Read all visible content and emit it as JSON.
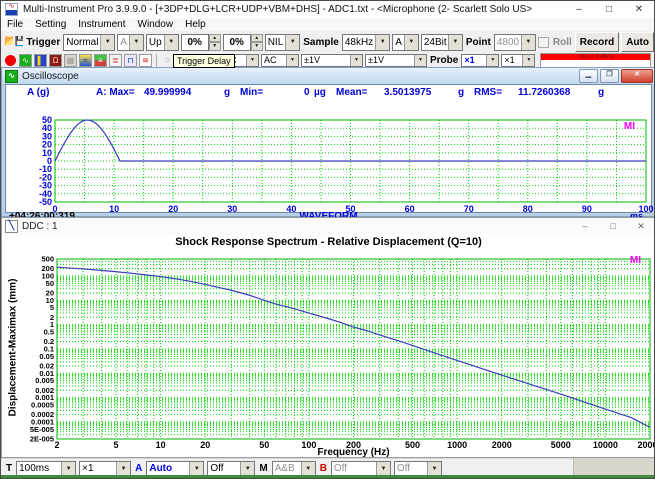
{
  "window": {
    "title": "Multi-Instrument Pro 3.9.9.0   -   [+3DP+DLG+LCR+UDP+VBM+DHS]   -   ADC1.txt   -   <Microphone (2- Scarlett Solo US>",
    "minimize": "–",
    "maximize": "□",
    "close": "✕"
  },
  "menu": {
    "items": [
      "File",
      "Setting",
      "Instrument",
      "Window",
      "Help"
    ]
  },
  "toolbar1": {
    "trigger_label": "Trigger",
    "trigger_mode": "Normal",
    "trigger_source": "A",
    "trigger_edge": "Up",
    "trigger_level": "0%",
    "trigger_delay": "0%",
    "hpf": "NIL",
    "sample_label": "Sample",
    "sample_rate": "48kHz",
    "sampling_channel": "A",
    "bit_depth": "24Bit",
    "point_label": "Point",
    "points": "4800",
    "roll_label": "Roll",
    "record_label": "Record",
    "auto_label": "Auto"
  },
  "toolbar2": {
    "coupling_a": "AC",
    "coupling_b": "AC",
    "range_a": "±1V",
    "range_b": "±1V",
    "probe_label": "Probe",
    "probe_a": "×1",
    "probe_b": "×1",
    "level_meter": "100%(0.0 dBFS)"
  },
  "tooltip": {
    "text": "Trigger Delay"
  },
  "oscilloscope": {
    "title": "Oscilloscope",
    "channel_label": "A (g)",
    "stats": {
      "max_label": "A: Max=",
      "max": "49.999994",
      "max_unit": "g",
      "min_label": "Min=",
      "min": "0",
      "min_unit": "µg",
      "mean_label": "Mean=",
      "mean": "3.5013975",
      "mean_unit": "g",
      "rms_label": "RMS=",
      "rms": "11.7260368",
      "rms_unit": "g"
    },
    "timestamp": "+04:26:00:319",
    "xlabel": "WAVEFORM",
    "x_unit": "ms",
    "logo": "MI"
  },
  "ddc": {
    "title": "DDC : 1",
    "chart_title": "Shock Response Spectrum  - Relative Displacement (Q=10)",
    "ylabel": "Displacement-Maximax (mm)",
    "xlabel": "Frequency (Hz)",
    "logo": "MI"
  },
  "bottom_toolbar": {
    "t_label": "T",
    "timebase": "100ms",
    "zoom": "×1",
    "a_label": "A",
    "a_mode": "Auto",
    "a_extra": "Off",
    "m_label": "M",
    "m_mode": "A&B",
    "b_label": "B",
    "b_mode": "Off",
    "b_extra": "Off"
  },
  "colors": {
    "grid_green": "#00d800",
    "plot_border_green": "#00b400",
    "curve_blue": "#3a3ac0",
    "label_blue": "#0000d8",
    "logo_magenta": "#ff00ff"
  },
  "chart_data": [
    {
      "type": "line",
      "name": "oscilloscope-waveform",
      "title": "WAVEFORM",
      "xlabel": "WAVEFORM",
      "ylabel": "A (g)",
      "x_unit": "ms",
      "y_unit": "g",
      "xlim": [
        0,
        100
      ],
      "ylim": [
        -50,
        50
      ],
      "x_ticks": [
        0,
        10,
        20,
        30,
        40,
        50,
        60,
        70,
        80,
        90,
        100
      ],
      "y_ticks": [
        50,
        40,
        30,
        20,
        10,
        0,
        -10,
        -20,
        -30,
        -40,
        -50
      ],
      "grid": "dotted-green",
      "pulse": {
        "shape": "half-sine",
        "amplitude_g": 50,
        "duration_ms": 11
      },
      "series": [
        {
          "name": "A",
          "points": [
            [
              0,
              0
            ],
            [
              0.5,
              7.1
            ],
            [
              1,
              14.1
            ],
            [
              1.5,
              20.8
            ],
            [
              2,
              27
            ],
            [
              2.5,
              32.7
            ],
            [
              3,
              37.8
            ],
            [
              3.5,
              42.1
            ],
            [
              4,
              45.5
            ],
            [
              4.5,
              48.1
            ],
            [
              5,
              49.5
            ],
            [
              5.5,
              50
            ],
            [
              6,
              49.5
            ],
            [
              6.5,
              47.8
            ],
            [
              7,
              45.5
            ],
            [
              7.5,
              41.9
            ],
            [
              8,
              37.8
            ],
            [
              8.5,
              32.7
            ],
            [
              9,
              27
            ],
            [
              9.5,
              20.8
            ],
            [
              10,
              14.1
            ],
            [
              10.5,
              7.1
            ],
            [
              11,
              0
            ],
            [
              100,
              0
            ]
          ]
        }
      ]
    },
    {
      "type": "line",
      "name": "shock-response-spectrum",
      "title": "Shock Response Spectrum  - Relative Displacement (Q=10)",
      "xlabel": "Frequency (Hz)",
      "ylabel": "Displacement-Maximax (mm)",
      "x_scale": "log",
      "y_scale": "log",
      "xlim": [
        2,
        20000
      ],
      "ylim": [
        2e-05,
        500
      ],
      "x_ticks": [
        "2",
        "5",
        "10",
        "20",
        "50",
        "100",
        "200",
        "500",
        "1000",
        "2000",
        "5000",
        "10000",
        "20000"
      ],
      "y_ticks": [
        "500",
        "200",
        "100",
        "50",
        "20",
        "10",
        "5",
        "2",
        "1",
        "0.5",
        "0.2",
        "0.1",
        "0.05",
        "0.02",
        "0.01",
        "0.005",
        "0.002",
        "0.001",
        "0.0005",
        "0.0002",
        "0.0001",
        "5E-005",
        "2E-005"
      ],
      "grid": "log-log-dotted-green",
      "series": [
        {
          "name": "A",
          "points": [
            [
              2,
              230
            ],
            [
              3,
              195
            ],
            [
              4,
              170
            ],
            [
              5,
              150
            ],
            [
              6,
              135
            ],
            [
              8,
              110
            ],
            [
              10,
              95
            ],
            [
              13,
              75
            ],
            [
              16,
              60
            ],
            [
              20,
              45
            ],
            [
              25,
              33
            ],
            [
              30,
              26
            ],
            [
              40,
              16
            ],
            [
              50,
              10
            ],
            [
              60,
              7
            ],
            [
              80,
              4.5
            ],
            [
              100,
              3
            ],
            [
              130,
              1.9
            ],
            [
              160,
              1.3
            ],
            [
              200,
              0.8
            ],
            [
              250,
              0.55
            ],
            [
              300,
              0.38
            ],
            [
              400,
              0.22
            ],
            [
              500,
              0.14
            ],
            [
              700,
              0.07
            ],
            [
              1000,
              0.034
            ],
            [
              1500,
              0.015
            ],
            [
              2000,
              0.0085
            ],
            [
              3000,
              0.0038
            ],
            [
              5000,
              0.0014
            ],
            [
              7000,
              0.0007
            ],
            [
              10000,
              0.00034
            ],
            [
              15000,
              0.00015
            ],
            [
              20000,
              6e-05
            ]
          ]
        }
      ]
    }
  ]
}
